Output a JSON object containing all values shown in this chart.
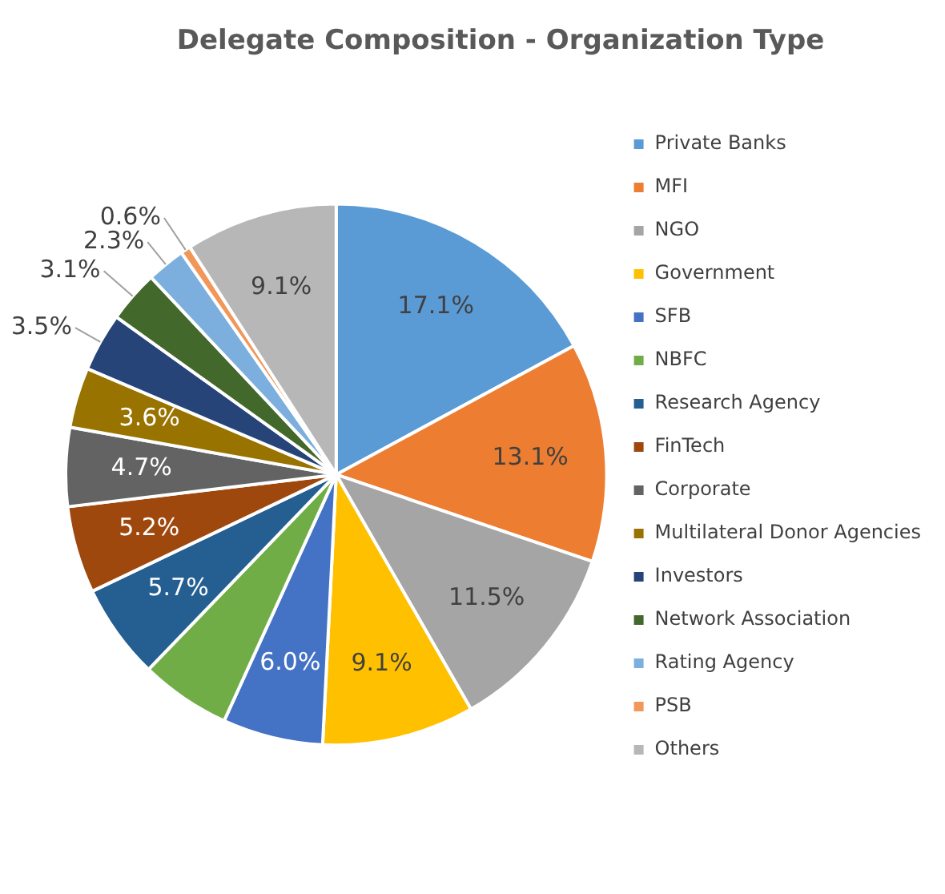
{
  "chart_data": {
    "type": "pie",
    "title": "Delegate Composition - Organization Type",
    "categories": [
      "Private Banks",
      "MFI",
      "NGO",
      "Government",
      "SFB",
      "NBFC",
      "Research Agency",
      "FinTech",
      "Corporate",
      "Multilateral Donor Agencies",
      "Investors",
      "Network Association",
      "Rating Agency",
      "PSB",
      "Others"
    ],
    "values": [
      17.1,
      13.1,
      11.5,
      9.1,
      6.0,
      5.4,
      5.7,
      5.2,
      4.7,
      3.6,
      3.5,
      3.1,
      2.3,
      0.6,
      9.1
    ],
    "value_labels": [
      "17.1%",
      "13.1%",
      "11.5%",
      "9.1%",
      "6.0%",
      null,
      "5.7%",
      "5.2%",
      "4.7%",
      "3.6%",
      "3.5%",
      "3.1%",
      "2.3%",
      "0.6%",
      "9.1%"
    ],
    "colors": [
      "#5b9bd5",
      "#ed7d31",
      "#a5a5a5",
      "#ffc000",
      "#4472c4",
      "#70ad47",
      "#255e91",
      "#9e480e",
      "#636363",
      "#997300",
      "#264478",
      "#43682b",
      "#7cafdd",
      "#f1975a",
      "#b7b7b7"
    ],
    "legend": "right"
  }
}
